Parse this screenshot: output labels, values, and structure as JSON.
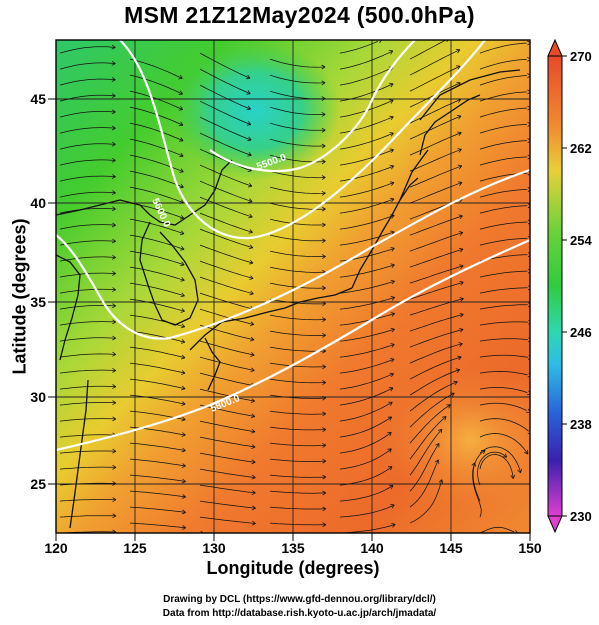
{
  "title": "MSM 21Z12May2024 (500.0hPa)",
  "axes": {
    "xlabel": "Longitude (degrees)",
    "ylabel": "Latitude  (degrees)",
    "x_ticks": [
      "120",
      "125",
      "130",
      "135",
      "140",
      "145",
      "150"
    ],
    "y_ticks": [
      "25",
      "30",
      "35",
      "40",
      "45"
    ]
  },
  "colorbar": {
    "labels": [
      "270",
      "262",
      "254",
      "246",
      "238",
      "230"
    ],
    "colors": [
      "#e8452a",
      "#f07a2e",
      "#e8a83a",
      "#d8d63e",
      "#7fd33a",
      "#35c83a",
      "#2ed6a0",
      "#2eb8e0",
      "#2a5fd8",
      "#3a2ab8",
      "#9a1fc8",
      "#e83fd0"
    ]
  },
  "contours": [
    {
      "label": "5500.0"
    },
    {
      "label": "5600.0"
    },
    {
      "label": "5700.0"
    },
    {
      "label": "5800.0"
    }
  ],
  "credits": {
    "line1": "Drawing by DCL (https://www.gfd-dennou.org/library/dcl/)",
    "line2": "Data from http://database.rish.kyoto-u.ac.jp/arch/jmadata/"
  }
}
